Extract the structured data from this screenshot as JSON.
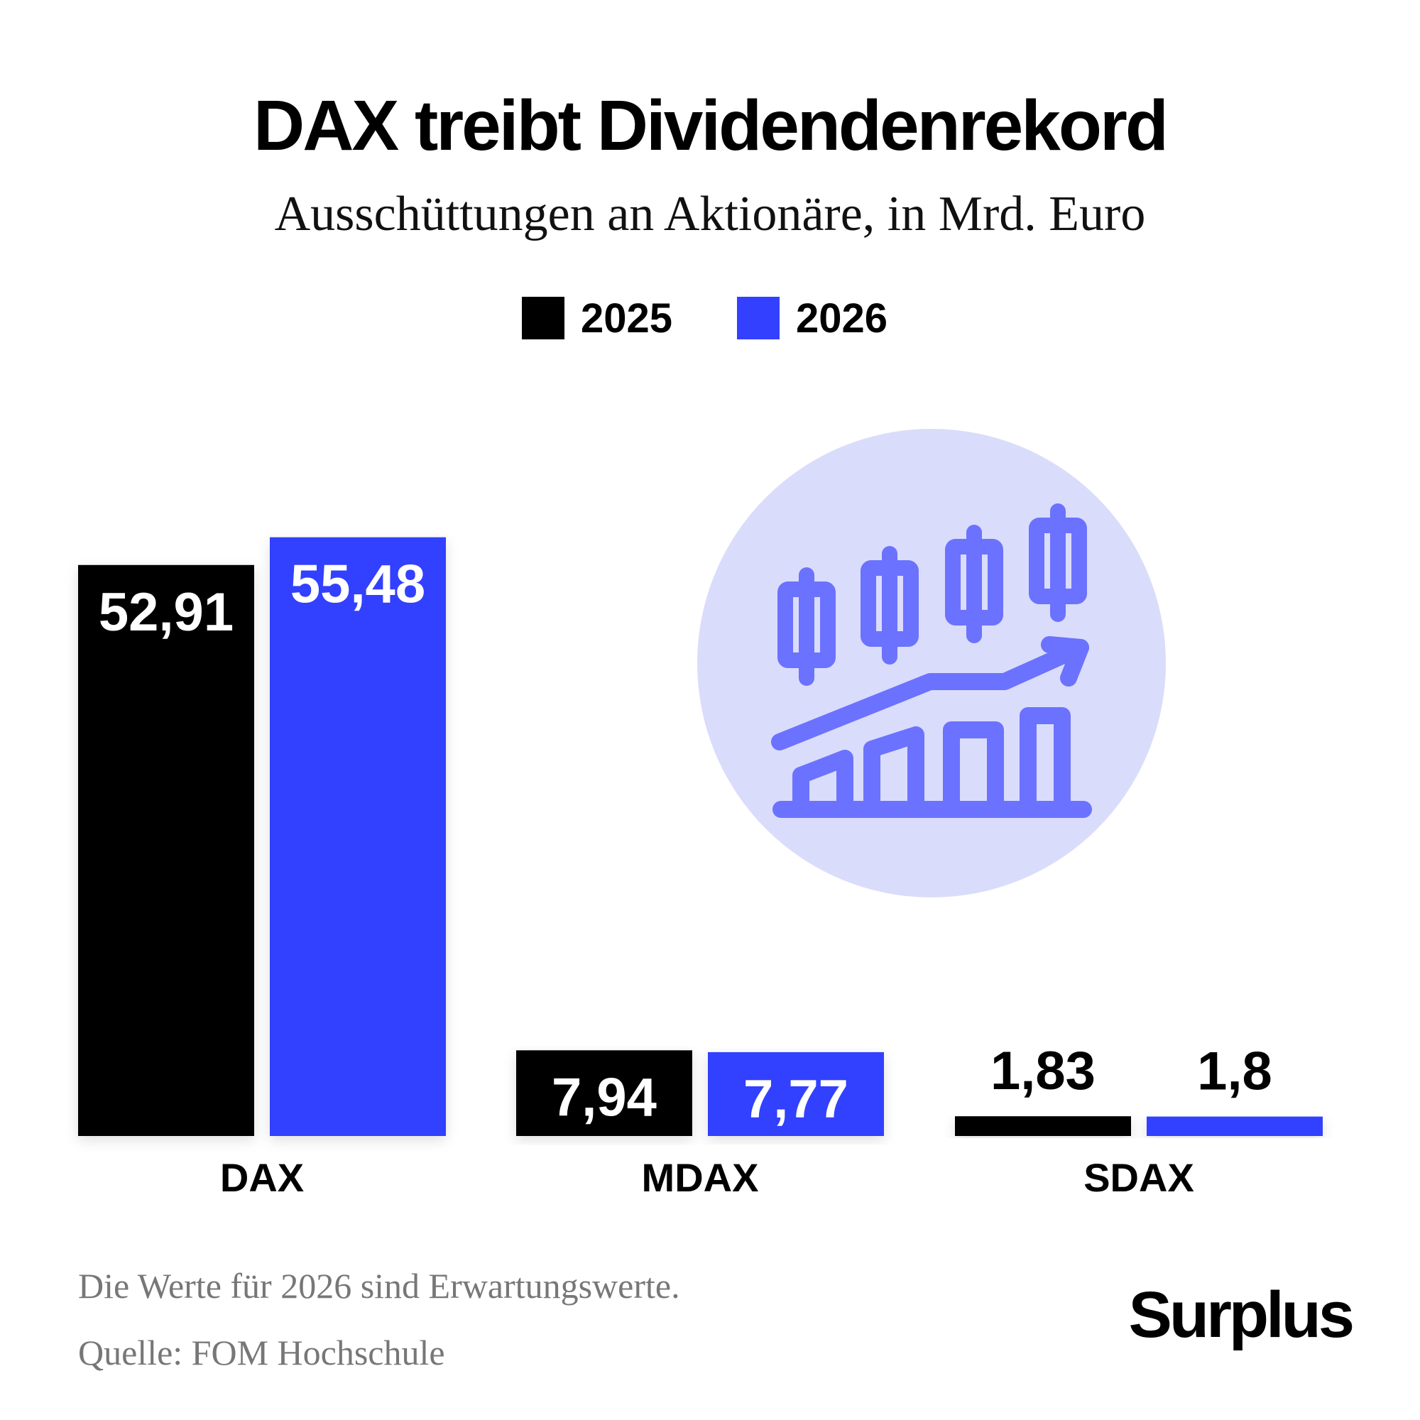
{
  "chart_data": {
    "type": "bar",
    "title": "DAX treibt Dividendenrekord",
    "subtitle": "Ausschüttungen an Aktionäre, in Mrd. Euro",
    "categories": [
      "DAX",
      "MDAX",
      "SDAX"
    ],
    "series": [
      {
        "name": "2025",
        "values": [
          52.91,
          7.94,
          1.83
        ],
        "labels": [
          "52,91",
          "7,94",
          "1,83"
        ],
        "color": "#000000"
      },
      {
        "name": "2026",
        "values": [
          55.48,
          7.77,
          1.8
        ],
        "labels": [
          "55,48",
          "7,77",
          "1,8"
        ],
        "color": "#3340ff"
      }
    ],
    "ylim": [
      0,
      57
    ],
    "grid": false,
    "legend_position": "top-center",
    "decoration": "candlestick-growth-icon"
  },
  "footnotes": {
    "note": "Die Werte für 2026 sind Erwartungswerte.",
    "source": "Quelle: FOM Hochschule"
  },
  "brand": "Surplus",
  "colors": {
    "accent": "#3340ff",
    "icon_circle": "#dadcfb",
    "icon_stroke": "#6b72ff",
    "footnote": "#777777"
  }
}
